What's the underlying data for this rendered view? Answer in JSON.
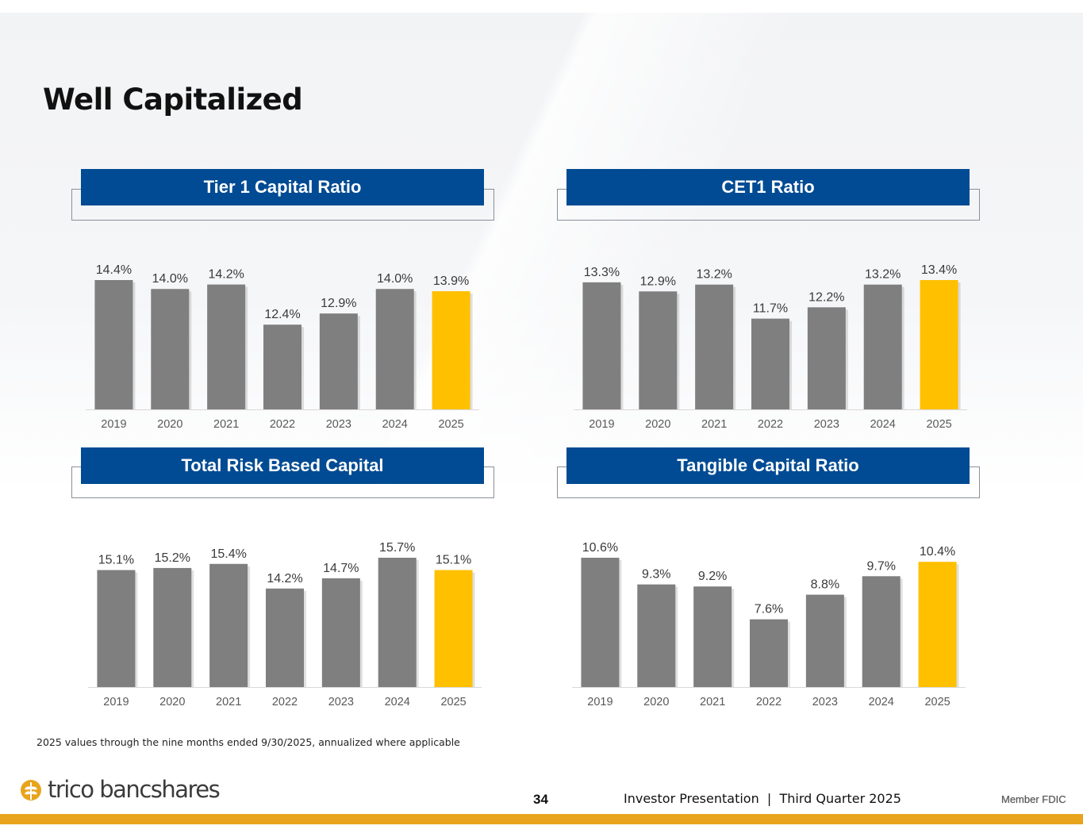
{
  "title": "Well Capitalized",
  "colors": {
    "header_blue": "#004b93",
    "bar_gray": "#7f7f7f",
    "bar_highlight": "#ffc000",
    "accent_orange": "#e8a41c"
  },
  "chart_data": [
    {
      "id": "tier1",
      "type": "bar",
      "title": "Tier 1 Capital Ratio",
      "categories": [
        "2019",
        "2020",
        "2021",
        "2022",
        "2023",
        "2024",
        "2025"
      ],
      "values": [
        14.4,
        14.0,
        14.2,
        12.4,
        12.9,
        14.0,
        13.9
      ],
      "labels": [
        "14.4%",
        "14.0%",
        "14.2%",
        "12.4%",
        "12.9%",
        "14.0%",
        "13.9%"
      ],
      "highlight_index": 6,
      "ylim": [
        8.6,
        14.4
      ]
    },
    {
      "id": "cet1",
      "type": "bar",
      "title": "CET1 Ratio",
      "categories": [
        "2019",
        "2020",
        "2021",
        "2022",
        "2023",
        "2024",
        "2025"
      ],
      "values": [
        13.3,
        12.9,
        13.2,
        11.7,
        12.2,
        13.2,
        13.4
      ],
      "labels": [
        "13.3%",
        "12.9%",
        "13.2%",
        "11.7%",
        "12.2%",
        "13.2%",
        "13.4%"
      ],
      "highlight_index": 6,
      "ylim": [
        7.7,
        13.4
      ]
    },
    {
      "id": "trbc",
      "type": "bar",
      "title": "Total Risk Based Capital",
      "categories": [
        "2019",
        "2020",
        "2021",
        "2022",
        "2023",
        "2024",
        "2025"
      ],
      "values": [
        15.1,
        15.2,
        15.4,
        14.2,
        14.7,
        15.7,
        15.1
      ],
      "labels": [
        "15.1%",
        "15.2%",
        "15.4%",
        "14.2%",
        "14.7%",
        "15.7%",
        "15.1%"
      ],
      "highlight_index": 6,
      "ylim": [
        9.4,
        15.7
      ]
    },
    {
      "id": "tangible",
      "type": "bar",
      "title": "Tangible Capital Ratio",
      "categories": [
        "2019",
        "2020",
        "2021",
        "2022",
        "2023",
        "2024",
        "2025"
      ],
      "values": [
        10.6,
        9.3,
        9.2,
        7.6,
        8.8,
        9.7,
        10.4
      ],
      "labels": [
        "10.6%",
        "9.3%",
        "9.2%",
        "7.6%",
        "8.8%",
        "9.7%",
        "10.4%"
      ],
      "highlight_index": 6,
      "ylim": [
        4.3,
        10.6
      ]
    }
  ],
  "footnote": "2025 values through the nine months ended 9/30/2025, annualized where applicable",
  "footer": {
    "logo_text": "trico bancshares",
    "page_number": "34",
    "presentation": "Investor Presentation  |  Third Quarter 2025",
    "member": "Member FDIC"
  }
}
